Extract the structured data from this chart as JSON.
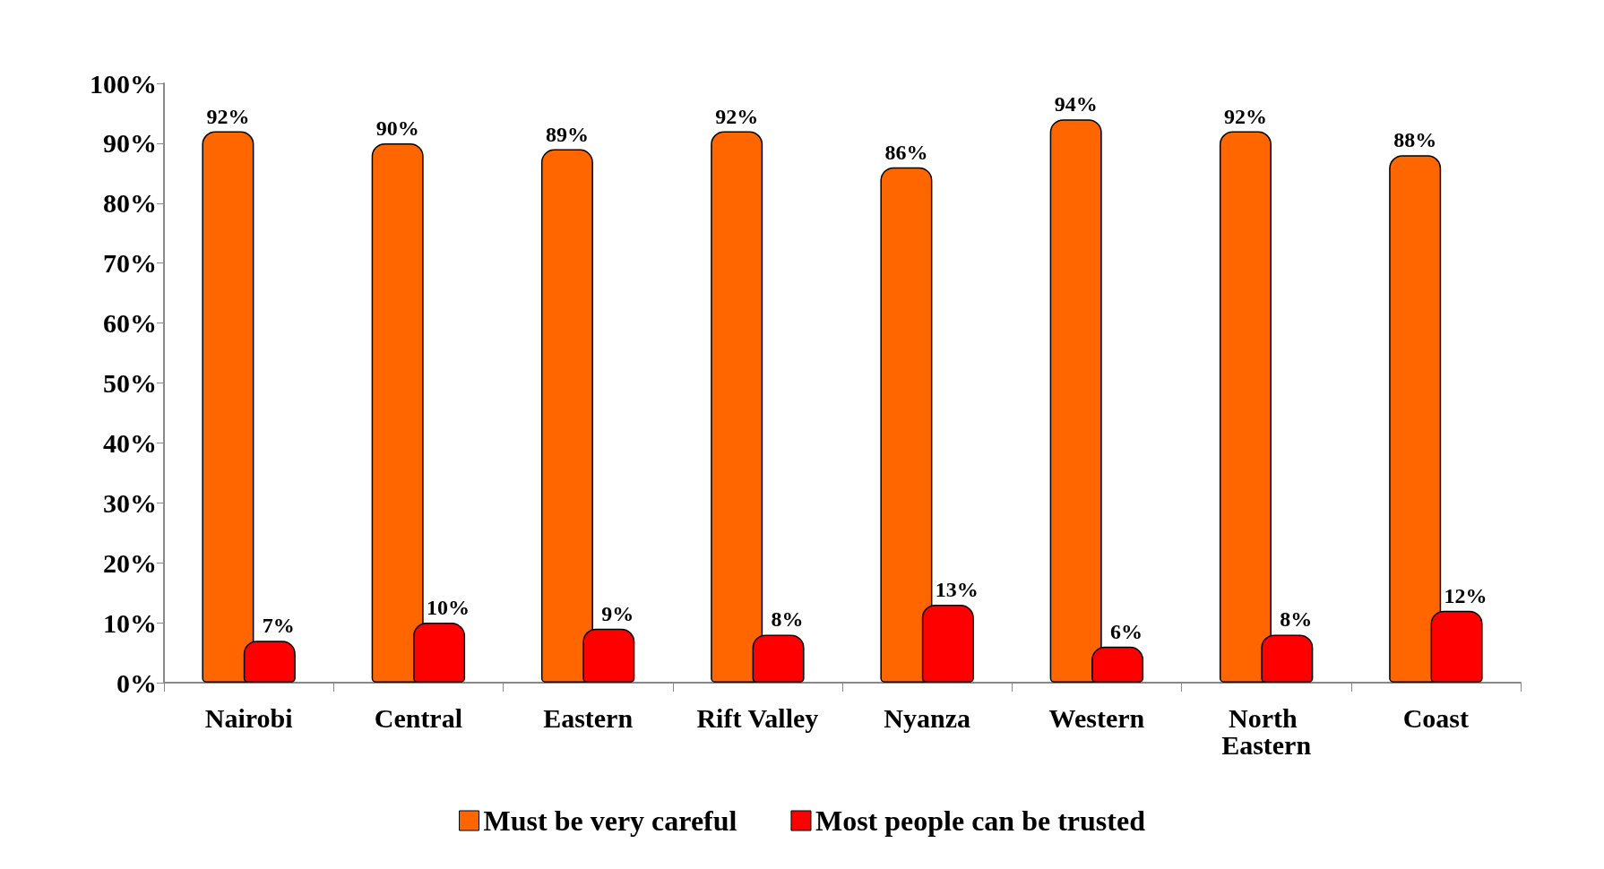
{
  "chart_data": {
    "type": "bar",
    "categories": [
      "Nairobi",
      "Central",
      "Eastern",
      "Rift Valley",
      "Nyanza",
      "Western",
      "North Eastern",
      "Coast"
    ],
    "series": [
      {
        "name": "Must be very careful",
        "color": "#ff6600",
        "values": [
          92,
          90,
          89,
          92,
          86,
          94,
          92,
          88
        ],
        "value_labels": [
          "92%",
          "90%",
          "89%",
          "92%",
          "86%",
          "94%",
          "92%",
          "88%"
        ]
      },
      {
        "name": "Most people can be trusted",
        "color": "#ff0000",
        "values": [
          7,
          10,
          9,
          8,
          13,
          6,
          8,
          12
        ],
        "value_labels": [
          "7%",
          "10%",
          "9%",
          "8%",
          "13%",
          "6%",
          "8%",
          "12%"
        ]
      }
    ],
    "ylim": [
      0,
      100
    ],
    "yticks": [
      {
        "value": 0,
        "label": "0%"
      },
      {
        "value": 10,
        "label": "10%"
      },
      {
        "value": 20,
        "label": "20%"
      },
      {
        "value": 30,
        "label": "30%"
      },
      {
        "value": 40,
        "label": "40%"
      },
      {
        "value": 50,
        "label": "50%"
      },
      {
        "value": 60,
        "label": "60%"
      },
      {
        "value": 70,
        "label": "70%"
      },
      {
        "value": 80,
        "label": "80%"
      },
      {
        "value": 90,
        "label": "90%"
      },
      {
        "value": 100,
        "label": "100%"
      }
    ],
    "grid": false,
    "legend": "bottom"
  }
}
